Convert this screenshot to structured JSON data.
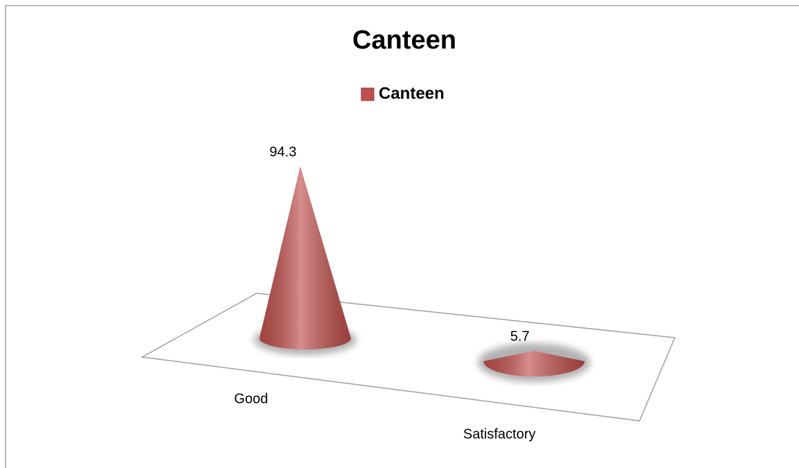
{
  "chart_data": {
    "type": "cone",
    "title": "Canteen",
    "categories": [
      "Good",
      "Satisfactory"
    ],
    "series": [
      {
        "name": "Canteen",
        "color": "#c0504d",
        "values": [
          94.3,
          5.7
        ]
      }
    ],
    "legend": "top"
  }
}
